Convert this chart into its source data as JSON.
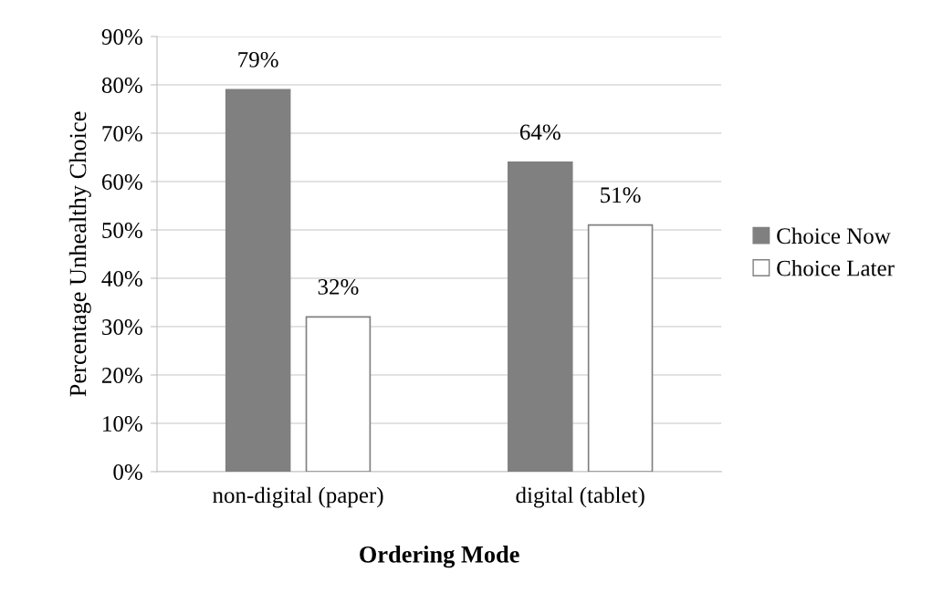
{
  "chart_data": {
    "type": "bar",
    "xlabel": "Ordering Mode",
    "ylabel": "Percentage Unhealthy Choice",
    "categories": [
      "non-digital (paper)",
      "digital (tablet)"
    ],
    "series": [
      {
        "name": "Choice Now",
        "color": "#808080",
        "values": [
          79,
          64
        ],
        "value_labels": [
          "79%",
          "64%"
        ]
      },
      {
        "name": "Choice Later",
        "color": "#ffffff",
        "values": [
          32,
          51
        ],
        "value_labels": [
          "32%",
          "51%"
        ]
      }
    ],
    "ylim": [
      0,
      90
    ],
    "yticks": [
      {
        "value": 0,
        "label": "0%"
      },
      {
        "value": 10,
        "label": "10%"
      },
      {
        "value": 20,
        "label": "20%"
      },
      {
        "value": 30,
        "label": "30%"
      },
      {
        "value": 40,
        "label": "40%"
      },
      {
        "value": 50,
        "label": "50%"
      },
      {
        "value": 60,
        "label": "60%"
      },
      {
        "value": 70,
        "label": "70%"
      },
      {
        "value": 80,
        "label": "80%"
      },
      {
        "value": 90,
        "label": "90%"
      }
    ],
    "grid": "y",
    "legend": "right"
  }
}
